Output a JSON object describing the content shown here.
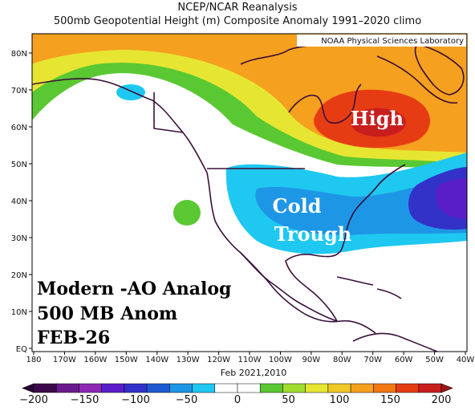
{
  "header": {
    "title_line1": "NCEP/NCAR Reanalysis",
    "title_line2": "500mb Geopotential Height (m) Composite Anomaly 1991–2020 climo"
  },
  "credit": "NOAA Physical Sciences Laboratory",
  "map": {
    "lat_labels": [
      "80N",
      "70N",
      "60N",
      "50N",
      "40N",
      "30N",
      "20N",
      "10N",
      "EQ"
    ],
    "lon_labels": [
      "180",
      "170W",
      "160W",
      "150W",
      "140W",
      "130W",
      "120W",
      "110W",
      "100W",
      "90W",
      "80W",
      "70W",
      "60W",
      "50W",
      "40W"
    ],
    "period_label": "Feb 2021,2010"
  },
  "annotations": {
    "high": "High",
    "cold": "Cold",
    "trough": "Trough",
    "analog_line1": "Modern -AO Analog",
    "analog_line2": "500 MB Anom",
    "analog_line3": "FEB-26"
  },
  "colorbar": {
    "labels": [
      "−200",
      "−150",
      "−100",
      "−50",
      "0",
      "50",
      "100",
      "150",
      "200"
    ],
    "colors": [
      "#3c0a4a",
      "#6a1a8a",
      "#8c28b4",
      "#5a1ec8",
      "#3232c8",
      "#1e5ad2",
      "#1e96e6",
      "#1ec8f0",
      "#ffffff",
      "#ffffff",
      "#5ac832",
      "#a0dc32",
      "#e6e632",
      "#f0c828",
      "#f5a01e",
      "#f07814",
      "#e63c14",
      "#c81e1e"
    ]
  },
  "colors": {
    "coast": "#3a0f3a",
    "high_anom": "#e63c14",
    "low_anom": "#1ec8f0"
  }
}
